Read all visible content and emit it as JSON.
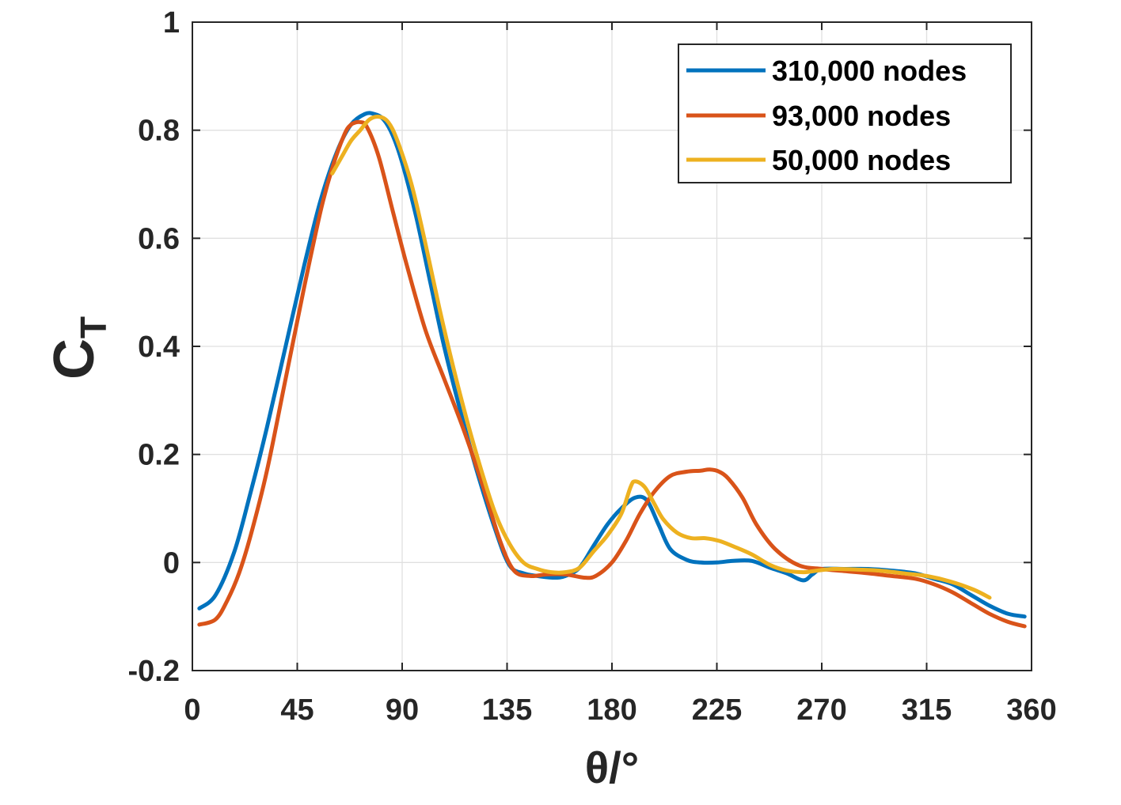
{
  "chart_data": {
    "type": "line",
    "title": "",
    "xlabel": "θ/°",
    "ylabel_main": "C",
    "ylabel_sub": "T",
    "xlim": [
      0,
      360
    ],
    "ylim": [
      -0.2,
      1
    ],
    "xticks": [
      0,
      45,
      90,
      135,
      180,
      225,
      270,
      315,
      360
    ],
    "yticks": [
      -0.2,
      0,
      0.2,
      0.4,
      0.6,
      0.8,
      1
    ],
    "ytick_labels": [
      "-0.2",
      "0",
      "0.2",
      "0.4",
      "0.6",
      "0.8",
      "1"
    ],
    "grid": true,
    "legend_position": "top-right",
    "series": [
      {
        "name": "310,000 nodes",
        "color": "#0072BD",
        "x": [
          3,
          10,
          18,
          25,
          32,
          40,
          48,
          55,
          62,
          68,
          74,
          78,
          82,
          86,
          90,
          96,
          102,
          108,
          115,
          122,
          130,
          136,
          142,
          148,
          155,
          160,
          166,
          172,
          178,
          184,
          190,
          195,
          200,
          205,
          212,
          218,
          225,
          232,
          240,
          248,
          255,
          262,
          266,
          270,
          280,
          290,
          300,
          310,
          318,
          326,
          334,
          342,
          350,
          357
        ],
        "y": [
          -0.085,
          -0.06,
          0.02,
          0.13,
          0.25,
          0.4,
          0.55,
          0.67,
          0.76,
          0.81,
          0.83,
          0.83,
          0.82,
          0.79,
          0.74,
          0.64,
          0.52,
          0.4,
          0.28,
          0.17,
          0.06,
          -0.005,
          -0.02,
          -0.025,
          -0.028,
          -0.025,
          -0.01,
          0.03,
          0.07,
          0.1,
          0.12,
          0.115,
          0.07,
          0.025,
          0.005,
          0.0,
          0.0,
          0.003,
          0.003,
          -0.01,
          -0.02,
          -0.033,
          -0.022,
          -0.012,
          -0.012,
          -0.012,
          -0.015,
          -0.02,
          -0.03,
          -0.04,
          -0.06,
          -0.08,
          -0.095,
          -0.1
        ]
      },
      {
        "name": "93,000 nodes",
        "color": "#D95319",
        "x": [
          3,
          10,
          15,
          20,
          25,
          32,
          40,
          48,
          55,
          60,
          65,
          68,
          72,
          75,
          80,
          86,
          92,
          100,
          108,
          116,
          124,
          132,
          138,
          145,
          152,
          160,
          168,
          173,
          180,
          186,
          192,
          198,
          205,
          212,
          218,
          222,
          226,
          230,
          236,
          242,
          250,
          260,
          270,
          280,
          290,
          300,
          310,
          318,
          326,
          334,
          342,
          350,
          357
        ],
        "y": [
          -0.115,
          -0.105,
          -0.07,
          -0.02,
          0.05,
          0.17,
          0.34,
          0.51,
          0.65,
          0.73,
          0.79,
          0.81,
          0.815,
          0.805,
          0.75,
          0.65,
          0.55,
          0.43,
          0.34,
          0.25,
          0.15,
          0.04,
          -0.015,
          -0.025,
          -0.022,
          -0.022,
          -0.028,
          -0.025,
          0.0,
          0.04,
          0.09,
          0.13,
          0.16,
          0.168,
          0.17,
          0.172,
          0.168,
          0.155,
          0.12,
          0.07,
          0.025,
          -0.005,
          -0.012,
          -0.016,
          -0.02,
          -0.025,
          -0.03,
          -0.04,
          -0.055,
          -0.075,
          -0.095,
          -0.11,
          -0.118
        ]
      },
      {
        "name": "50,000 nodes",
        "color": "#EDB120",
        "x": [
          60,
          64,
          68,
          72,
          76,
          80,
          84,
          88,
          94,
          100,
          106,
          112,
          118,
          124,
          130,
          136,
          142,
          148,
          154,
          160,
          166,
          172,
          178,
          184,
          188,
          190,
          194,
          198,
          202,
          208,
          214,
          220,
          226,
          232,
          240,
          248,
          255,
          262,
          268,
          275,
          285,
          295,
          305,
          315,
          325,
          335,
          342
        ],
        "y": [
          0.72,
          0.75,
          0.78,
          0.8,
          0.82,
          0.825,
          0.815,
          0.78,
          0.7,
          0.59,
          0.47,
          0.36,
          0.26,
          0.17,
          0.09,
          0.035,
          0.0,
          -0.012,
          -0.018,
          -0.018,
          -0.01,
          0.02,
          0.05,
          0.09,
          0.14,
          0.15,
          0.14,
          0.11,
          0.08,
          0.055,
          0.045,
          0.045,
          0.04,
          0.03,
          0.015,
          -0.005,
          -0.015,
          -0.018,
          -0.015,
          -0.012,
          -0.013,
          -0.015,
          -0.02,
          -0.025,
          -0.035,
          -0.05,
          -0.065
        ]
      }
    ]
  }
}
